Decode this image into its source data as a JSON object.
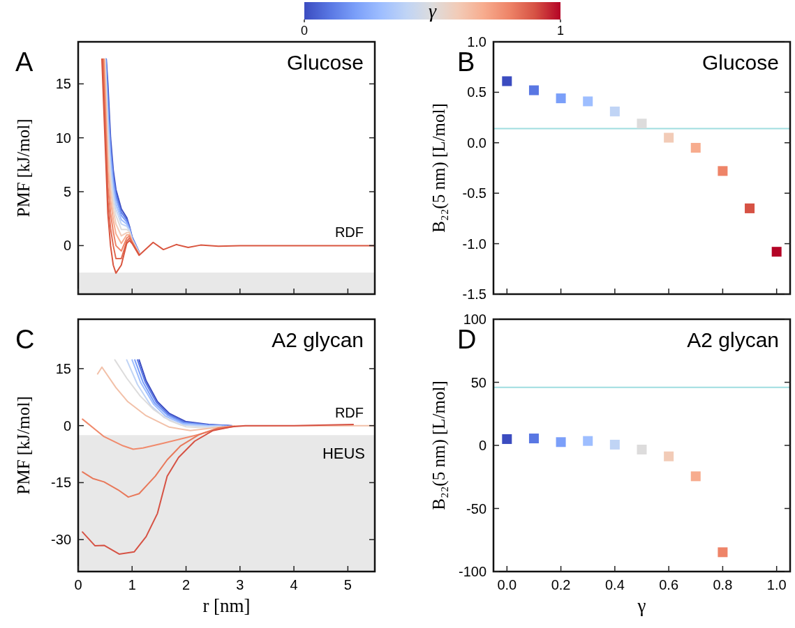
{
  "chart_data": [
    {
      "type": "line",
      "title": "A",
      "ylabel": "PMF [kJ/mol]",
      "xlim": [
        0,
        5.5
      ],
      "xticks": [
        0,
        1,
        2,
        3,
        4,
        5
      ],
      "ylim": [
        -4.5,
        18.9
      ],
      "yticks": [
        0,
        5,
        10,
        15
      ],
      "tick_labels": "y",
      "line_style": "solid",
      "bands": [
        {
          "axis": "y",
          "from": -4.5,
          "to": -2.5,
          "color": "#e8e8e8"
        }
      ],
      "annotations": [
        "Glucose",
        "RDF"
      ],
      "series": [
        {
          "color": "#3b4cc0",
          "x": [
            0.52,
            0.55,
            0.6,
            0.65,
            0.7,
            0.8,
            0.9,
            0.95,
            1.0,
            1.13
          ],
          "values": [
            17.3,
            15,
            10,
            7.0,
            5.2,
            3.4,
            2.6,
            1.8,
            0.8,
            -0.6
          ]
        },
        {
          "color": "#5977e3",
          "x": [
            0.515,
            0.55,
            0.6,
            0.65,
            0.7,
            0.8,
            0.9,
            0.95,
            1.0,
            1.13
          ],
          "values": [
            17.3,
            14,
            9.3,
            6.5,
            4.8,
            3.1,
            2.4,
            1.7,
            0.7,
            -0.6
          ]
        },
        {
          "color": "#7b9ff9",
          "x": [
            0.51,
            0.55,
            0.6,
            0.65,
            0.7,
            0.8,
            0.9,
            0.95,
            1.0,
            1.13
          ],
          "values": [
            17.3,
            13,
            8.6,
            6.0,
            4.4,
            2.8,
            2.2,
            1.6,
            0.7,
            -0.65
          ]
        },
        {
          "color": "#9ebeff",
          "x": [
            0.505,
            0.55,
            0.6,
            0.65,
            0.7,
            0.8,
            0.9,
            0.95,
            1.0,
            1.13
          ],
          "values": [
            17.3,
            12,
            7.9,
            5.4,
            3.9,
            2.4,
            2.0,
            1.5,
            0.6,
            -0.65
          ]
        },
        {
          "color": "#c0d4f5",
          "x": [
            0.5,
            0.55,
            0.6,
            0.65,
            0.7,
            0.8,
            0.9,
            0.95,
            1.0,
            1.13
          ],
          "values": [
            17.3,
            11,
            7.1,
            4.8,
            3.4,
            2.0,
            1.8,
            1.4,
            0.6,
            -0.7
          ]
        },
        {
          "color": "#dddcdc",
          "x": [
            0.495,
            0.55,
            0.6,
            0.65,
            0.7,
            0.8,
            0.9,
            0.95,
            1.0,
            1.13
          ],
          "values": [
            17.3,
            10,
            6.3,
            4.1,
            2.8,
            1.5,
            1.5,
            1.3,
            0.5,
            -0.7
          ]
        },
        {
          "color": "#f2cbb7",
          "x": [
            0.49,
            0.55,
            0.6,
            0.65,
            0.7,
            0.8,
            0.9,
            0.95,
            1.0,
            1.13
          ],
          "values": [
            17.3,
            8.5,
            5.3,
            3.3,
            2.0,
            0.9,
            1.2,
            1.2,
            0.5,
            -0.75
          ]
        },
        {
          "color": "#f7ac8e",
          "x": [
            0.48,
            0.55,
            0.6,
            0.65,
            0.7,
            0.8,
            0.9,
            0.95,
            1.0,
            1.13
          ],
          "values": [
            17.3,
            7,
            4.2,
            2.4,
            1.1,
            0.2,
            1.0,
            1.0,
            0.4,
            -0.8
          ]
        },
        {
          "color": "#ee8468",
          "x": [
            0.47,
            0.55,
            0.6,
            0.65,
            0.7,
            0.8,
            0.9,
            0.95,
            1.0,
            1.13
          ],
          "values": [
            17.3,
            5.5,
            3.0,
            1.3,
            0.0,
            -0.5,
            0.7,
            0.9,
            0.3,
            -0.85
          ]
        },
        {
          "color": "#e06a52",
          "x": [
            0.455,
            0.55,
            0.6,
            0.65,
            0.7,
            0.8,
            0.9,
            0.95,
            1.0,
            1.13
          ],
          "values": [
            17.3,
            4.2,
            1.6,
            0.0,
            -1.2,
            -1.2,
            0.4,
            0.7,
            0.3,
            -0.85
          ]
        },
        {
          "color": "#d9553f",
          "x": [
            0.44,
            0.55,
            0.6,
            0.65,
            0.7,
            0.8,
            0.9,
            0.95,
            1.0,
            1.13,
            1.39,
            1.58,
            1.82,
            2.04,
            2.27,
            2.6,
            3.0,
            4.0,
            5.5
          ],
          "values": [
            17.3,
            3,
            0,
            -1.8,
            -2.55,
            -1.8,
            0.2,
            0.47,
            0.2,
            -0.9,
            0.3,
            -0.37,
            0.1,
            -0.17,
            0.05,
            -0.05,
            0,
            0,
            0
          ]
        }
      ]
    },
    {
      "type": "scatter",
      "title": "B",
      "ylabel": "B₂₂(5 nm) [L/mol]",
      "xlim": [
        -0.05,
        1.05
      ],
      "xticks": [
        0,
        0.2,
        0.4,
        0.6,
        0.8,
        1
      ],
      "ylim": [
        -1.5,
        1.0
      ],
      "yticks": [
        {
          "value": -1.5,
          "label": "-1.5"
        },
        {
          "value": -1,
          "label": "-1.0"
        },
        {
          "value": -0.5,
          "label": "-0.5"
        },
        {
          "value": 0,
          "label": "0.0"
        },
        {
          "value": 0.5,
          "label": "0.5"
        },
        {
          "value": 1,
          "label": "1.0"
        }
      ],
      "tick_labels": "y",
      "marker": "square",
      "clabel": "γ",
      "clim": [
        0,
        1
      ],
      "cticks": [
        0,
        1
      ],
      "ref_lines": [
        {
          "axis": "y",
          "value": 0.14,
          "color": "#9fdde0"
        }
      ],
      "annotations": [
        "Glucose"
      ],
      "x": [
        0,
        0.1,
        0.2,
        0.3,
        0.4,
        0.5,
        0.6,
        0.7,
        0.8,
        0.9,
        1.0
      ],
      "values": [
        0.61,
        0.52,
        0.44,
        0.41,
        0.31,
        0.19,
        0.05,
        -0.05,
        -0.28,
        -0.65,
        -1.08
      ],
      "cvalues": [
        0,
        0.1,
        0.2,
        0.3,
        0.4,
        0.5,
        0.6,
        0.7,
        0.8,
        0.9,
        1.0
      ],
      "colors": [
        "#3b4cc0",
        "#5977e3",
        "#7b9ff9",
        "#9ebeff",
        "#c0d4f5",
        "#dddcdc",
        "#f2cbb7",
        "#f7ac8e",
        "#ee8468",
        "#d65244",
        "#b40426"
      ]
    },
    {
      "type": "line",
      "title": "C",
      "ylabel": "PMF [kJ/mol]",
      "xlabel": "r [nm]",
      "xlim": [
        0,
        5.5
      ],
      "xticks": [
        0,
        1,
        2,
        3,
        4,
        5
      ],
      "ylim": [
        -38.4,
        28
      ],
      "yticks": [
        -30,
        -15,
        0,
        15
      ],
      "line_style": "solid",
      "bands": [
        {
          "axis": "y",
          "from": -38.4,
          "to": -2.5,
          "color": "#e8e8e8",
          "label": "HEUS"
        }
      ],
      "annotations": [
        "A2 glycan",
        "RDF"
      ],
      "series": [
        {
          "color": "#3b4cc0",
          "x": [
            1.13,
            1.26,
            1.47,
            1.69,
            1.99,
            2.42,
            2.85
          ],
          "values": [
            17.3,
            11.8,
            6.3,
            3.2,
            1.1,
            0.3,
            0
          ]
        },
        {
          "color": "#5977e3",
          "x": [
            1.1,
            1.24,
            1.45,
            1.67,
            1.97,
            2.4,
            2.8
          ],
          "values": [
            17.3,
            11.6,
            6.1,
            3.0,
            0.9,
            0.2,
            0
          ]
        },
        {
          "color": "#7b9ff9",
          "x": [
            1.05,
            1.2,
            1.42,
            1.65,
            1.95,
            2.4,
            2.75
          ],
          "values": [
            17.3,
            11.5,
            5.9,
            2.8,
            0.7,
            0.1,
            0
          ]
        },
        {
          "color": "#9ebeff",
          "x": [
            1.0,
            1.16,
            1.4,
            1.62,
            1.93,
            2.4,
            2.7
          ],
          "values": [
            17.3,
            11.3,
            5.6,
            2.5,
            0.5,
            0,
            -0.1
          ]
        },
        {
          "color": "#c0d4f5",
          "x": [
            0.9,
            1.1,
            1.35,
            1.6,
            1.9,
            2.4,
            2.65
          ],
          "values": [
            17.3,
            10.8,
            5.2,
            2.1,
            0.2,
            -0.2,
            -0.1
          ]
        },
        {
          "color": "#dddcdc",
          "x": [
            0.68,
            0.9,
            1.15,
            1.4,
            1.7,
            2.0,
            2.4,
            2.6
          ],
          "values": [
            17.3,
            12.5,
            7.8,
            4.2,
            1.3,
            -0.3,
            -0.6,
            -0.3
          ]
        },
        {
          "color": "#f2c0a8",
          "x": [
            0.36,
            0.44,
            0.7,
            0.92,
            1.26,
            1.69,
            2.08,
            2.5,
            2.85,
            5.5
          ],
          "values": [
            13.6,
            15.4,
            10,
            6.3,
            2.6,
            -0.4,
            -1.3,
            -0.6,
            -0.1,
            0
          ]
        },
        {
          "color": "#f08a6c",
          "x": [
            0.08,
            0.48,
            0.83,
            1.02,
            1.2,
            1.56,
            1.9,
            2.25,
            2.55,
            2.9
          ],
          "values": [
            1.7,
            -2.9,
            -5.3,
            -6.2,
            -5.9,
            -4.7,
            -3.5,
            -2.3,
            -1.0,
            -0.2
          ]
        },
        {
          "color": "#e8785a",
          "x": [
            0.08,
            0.27,
            0.48,
            0.74,
            0.93,
            1.13,
            1.43,
            1.65,
            1.9,
            2.25,
            2.6,
            2.9
          ],
          "values": [
            -12.2,
            -13.9,
            -14.8,
            -16.9,
            -18.8,
            -17.9,
            -13.3,
            -9.0,
            -5.3,
            -2.3,
            -0.6,
            -0.2
          ]
        },
        {
          "color": "#d65244",
          "x": [
            0.08,
            0.31,
            0.48,
            0.76,
            1.04,
            1.26,
            1.47,
            1.65,
            1.86,
            2.16,
            2.5,
            2.85,
            3.1,
            4.0,
            5.1
          ],
          "values": [
            -28.0,
            -31.6,
            -31.5,
            -33.8,
            -33.2,
            -29.2,
            -23.1,
            -13.3,
            -8.4,
            -4.1,
            -1.3,
            -0.3,
            0,
            0,
            0.3
          ]
        }
      ]
    },
    {
      "type": "scatter",
      "title": "D",
      "ylabel": "B₂₂(5 nm) [L/mol]",
      "xlabel": "γ",
      "xlim": [
        -0.05,
        1.05
      ],
      "xticks": [
        {
          "value": 0,
          "label": "0.0"
        },
        {
          "value": 0.2,
          "label": "0.2"
        },
        {
          "value": 0.4,
          "label": "0.4"
        },
        {
          "value": 0.6,
          "label": "0.6"
        },
        {
          "value": 0.8,
          "label": "0.8"
        },
        {
          "value": 1,
          "label": "1.0"
        }
      ],
      "ylim": [
        -100,
        100
      ],
      "yticks": [
        -100,
        -50,
        0,
        50,
        100
      ],
      "marker": "square",
      "ref_lines": [
        {
          "axis": "y",
          "value": 46,
          "color": "#9fdde0"
        }
      ],
      "annotations": [
        "A2 glycan"
      ],
      "x": [
        0,
        0.1,
        0.2,
        0.3,
        0.4,
        0.5,
        0.6,
        0.7,
        0.8
      ],
      "values": [
        5,
        5.5,
        2.6,
        3.5,
        0.6,
        -3.3,
        -8.7,
        -24.5,
        -84.7
      ],
      "colors": [
        "#3b4cc0",
        "#5977e3",
        "#7b9ff9",
        "#9ebeff",
        "#c0d4f5",
        "#dddcdc",
        "#f2cbb7",
        "#f7ac8e",
        "#ee8468"
      ]
    }
  ]
}
